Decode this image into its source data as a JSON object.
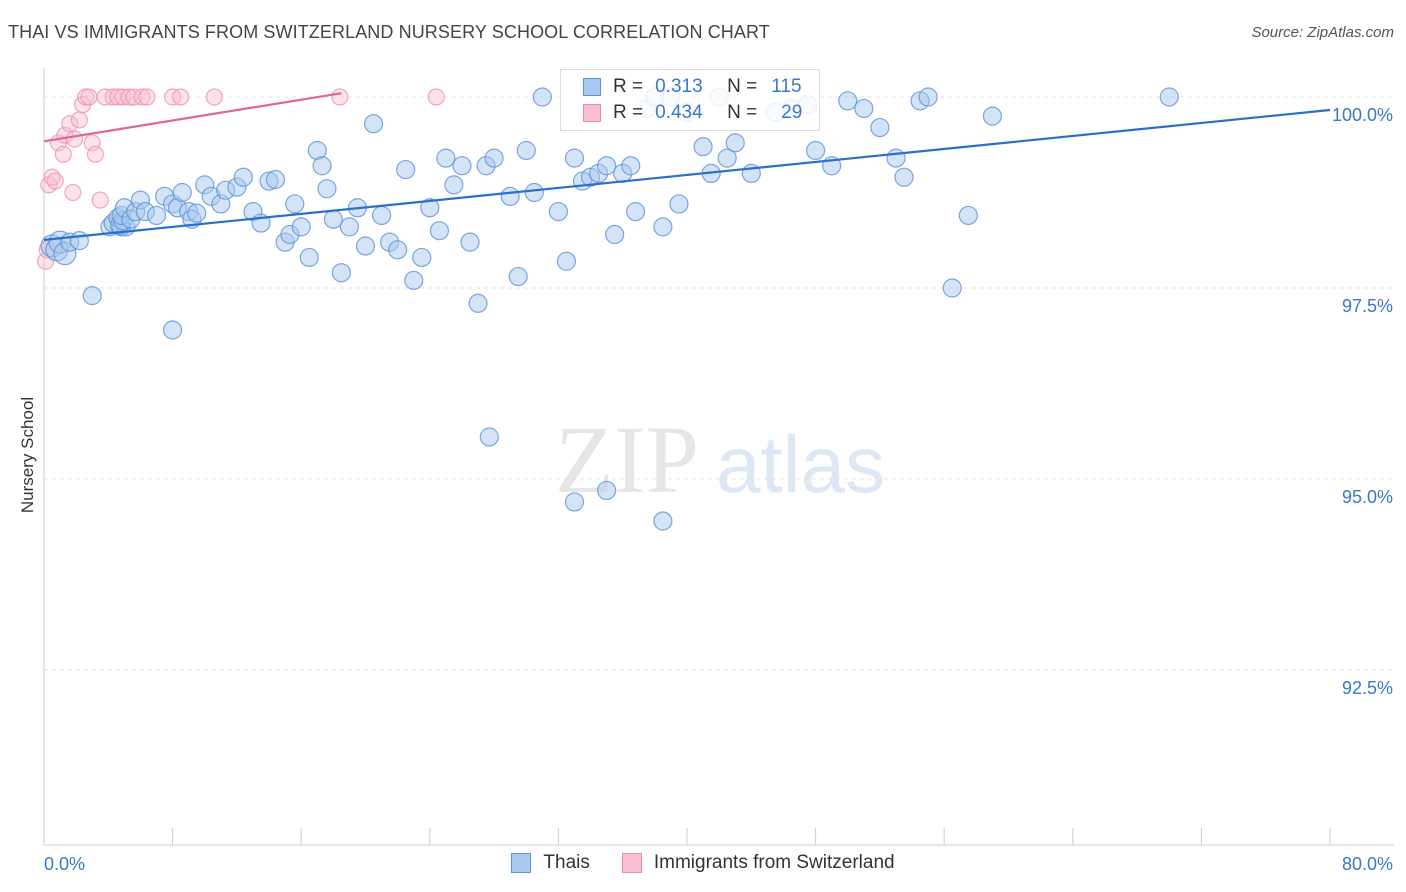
{
  "title": "THAI VS IMMIGRANTS FROM SWITZERLAND NURSERY SCHOOL CORRELATION CHART",
  "source": "Source: ZipAtlas.com",
  "watermark": {
    "zip": "ZIP",
    "atlas": "atlas"
  },
  "colors": {
    "blue": "#5b93d8",
    "blue_fill": "#a9c8ee",
    "blue_line": "#2a6fc9",
    "pink": "#f08cb0",
    "pink_fill": "#f7bfd2",
    "pink_line": "#e0688f",
    "tick_text": "#3a78c8",
    "grid": "#e3e3e3"
  },
  "legend": {
    "rows": [
      {
        "r_label": "R =",
        "r_value": "0.313",
        "n_label": "N =",
        "n_value": "115"
      },
      {
        "r_label": "R =",
        "r_value": "0.434",
        "n_label": "N =",
        "n_value": "29"
      }
    ]
  },
  "chart_data": {
    "type": "scatter",
    "title": "THAI VS IMMIGRANTS FROM SWITZERLAND NURSERY SCHOOL CORRELATION CHART",
    "xlabel": "",
    "ylabel": "Nursery School",
    "xlim": [
      0,
      80
    ],
    "ylim": [
      90.2,
      100.25
    ],
    "x_tick_labels": [
      "0.0%",
      "80.0%"
    ],
    "y_ticks": [
      92.5,
      95.0,
      97.5,
      100.0
    ],
    "y_tick_labels": [
      "92.5%",
      "95.0%",
      "97.5%",
      "100.0%"
    ],
    "legend_placement": "top-center",
    "series": [
      {
        "name": "Thais",
        "color": "#5b93d8",
        "trend": {
          "x": [
            0,
            80
          ],
          "y": [
            98.13,
            99.83
          ]
        },
        "points": [
          [
            0.5,
            98.05
          ],
          [
            0.8,
            98.0
          ],
          [
            1.0,
            98.1
          ],
          [
            1.3,
            97.95
          ],
          [
            1.6,
            98.1
          ],
          [
            2.2,
            98.12
          ],
          [
            3.0,
            97.4
          ],
          [
            4.1,
            98.3
          ],
          [
            4.3,
            98.35
          ],
          [
            4.6,
            98.42
          ],
          [
            5.1,
            98.3
          ],
          [
            4.8,
            98.3
          ],
          [
            4.7,
            98.32
          ],
          [
            4.9,
            98.38
          ],
          [
            4.8,
            98.45
          ],
          [
            5.0,
            98.55
          ],
          [
            5.4,
            98.4
          ],
          [
            5.7,
            98.5
          ],
          [
            6.0,
            98.65
          ],
          [
            6.3,
            98.5
          ],
          [
            7.0,
            98.45
          ],
          [
            7.5,
            98.7
          ],
          [
            8.0,
            98.6
          ],
          [
            8.3,
            98.55
          ],
          [
            8.6,
            98.75
          ],
          [
            9.0,
            98.5
          ],
          [
            9.2,
            98.4
          ],
          [
            9.5,
            98.48
          ],
          [
            10.0,
            98.85
          ],
          [
            10.4,
            98.7
          ],
          [
            11.0,
            98.6
          ],
          [
            11.3,
            98.78
          ],
          [
            12.0,
            98.82
          ],
          [
            12.4,
            98.95
          ],
          [
            13.0,
            98.5
          ],
          [
            13.5,
            98.35
          ],
          [
            14.0,
            98.9
          ],
          [
            14.4,
            98.92
          ],
          [
            15.0,
            98.1
          ],
          [
            15.3,
            98.2
          ],
          [
            15.6,
            98.6
          ],
          [
            16.0,
            98.3
          ],
          [
            16.5,
            97.9
          ],
          [
            17.0,
            99.3
          ],
          [
            17.3,
            99.1
          ],
          [
            17.6,
            98.8
          ],
          [
            18.0,
            98.4
          ],
          [
            18.5,
            97.7
          ],
          [
            19.0,
            98.3
          ],
          [
            19.5,
            98.55
          ],
          [
            20.0,
            98.05
          ],
          [
            20.5,
            99.65
          ],
          [
            21.0,
            98.45
          ],
          [
            21.5,
            98.1
          ],
          [
            22.0,
            98.0
          ],
          [
            22.5,
            99.05
          ],
          [
            23.0,
            97.6
          ],
          [
            23.5,
            97.9
          ],
          [
            24.0,
            98.55
          ],
          [
            24.6,
            98.25
          ],
          [
            25.0,
            99.2
          ],
          [
            25.5,
            98.85
          ],
          [
            26.0,
            99.1
          ],
          [
            26.5,
            98.1
          ],
          [
            27.0,
            97.3
          ],
          [
            27.5,
            99.1
          ],
          [
            28.0,
            99.2
          ],
          [
            29.0,
            98.7
          ],
          [
            29.5,
            97.65
          ],
          [
            30.0,
            99.3
          ],
          [
            30.5,
            98.75
          ],
          [
            31.0,
            100.0
          ],
          [
            32.0,
            98.5
          ],
          [
            32.5,
            97.85
          ],
          [
            33.0,
            99.2
          ],
          [
            33.5,
            98.9
          ],
          [
            34.0,
            98.95
          ],
          [
            34.5,
            99.0
          ],
          [
            35.0,
            99.1
          ],
          [
            35.5,
            98.2
          ],
          [
            36.0,
            99.0
          ],
          [
            36.5,
            99.1
          ],
          [
            27.7,
            95.55
          ],
          [
            36.8,
            98.5
          ],
          [
            37.5,
            99.85
          ],
          [
            38.0,
            100.0
          ],
          [
            38.5,
            98.3
          ],
          [
            39.0,
            100.0
          ],
          [
            39.5,
            98.6
          ],
          [
            40.0,
            99.8
          ],
          [
            41.0,
            99.35
          ],
          [
            41.5,
            99.0
          ],
          [
            42.0,
            100.0
          ],
          [
            42.5,
            99.2
          ],
          [
            43.0,
            99.4
          ],
          [
            44.0,
            99.0
          ],
          [
            45.5,
            99.8
          ],
          [
            46.5,
            99.85
          ],
          [
            47.5,
            99.9
          ],
          [
            48.0,
            99.3
          ],
          [
            49.0,
            99.1
          ],
          [
            50.0,
            99.95
          ],
          [
            51.0,
            99.85
          ],
          [
            52.0,
            99.6
          ],
          [
            53.0,
            99.2
          ],
          [
            54.5,
            99.95
          ],
          [
            53.5,
            98.95
          ],
          [
            55.0,
            100.0
          ],
          [
            56.5,
            97.5
          ],
          [
            57.5,
            98.45
          ],
          [
            59.0,
            99.75
          ],
          [
            70.0,
            100.0
          ],
          [
            33.0,
            94.7
          ],
          [
            35.0,
            94.85
          ],
          [
            38.5,
            94.45
          ],
          [
            8.0,
            96.95
          ]
        ]
      },
      {
        "name": "Immigrants from Switzerland",
        "color": "#f08cb0",
        "trend": {
          "x": [
            0,
            18.5
          ],
          "y": [
            99.42,
            100.05
          ]
        },
        "points": [
          [
            0.1,
            97.85
          ],
          [
            0.2,
            98.0
          ],
          [
            0.3,
            98.85
          ],
          [
            0.5,
            98.95
          ],
          [
            0.7,
            98.9
          ],
          [
            0.9,
            99.4
          ],
          [
            1.2,
            99.25
          ],
          [
            1.3,
            99.5
          ],
          [
            1.6,
            99.65
          ],
          [
            1.8,
            98.75
          ],
          [
            1.9,
            99.45
          ],
          [
            2.2,
            99.7
          ],
          [
            2.4,
            99.9
          ],
          [
            2.6,
            100.0
          ],
          [
            2.8,
            100.0
          ],
          [
            3.0,
            99.4
          ],
          [
            3.2,
            99.25
          ],
          [
            3.5,
            98.65
          ],
          [
            3.8,
            100.0
          ],
          [
            4.3,
            100.0
          ],
          [
            4.6,
            100.0
          ],
          [
            4.9,
            100.0
          ],
          [
            5.3,
            100.0
          ],
          [
            5.6,
            100.0
          ],
          [
            6.1,
            100.0
          ],
          [
            6.4,
            100.0
          ],
          [
            8.0,
            100.0
          ],
          [
            8.5,
            100.0
          ],
          [
            10.6,
            100.0
          ],
          [
            18.4,
            100.0
          ],
          [
            24.4,
            100.0
          ]
        ]
      }
    ]
  },
  "bottom_legend": [
    {
      "label": "Thais"
    },
    {
      "label": "Immigrants from Switzerland"
    }
  ]
}
